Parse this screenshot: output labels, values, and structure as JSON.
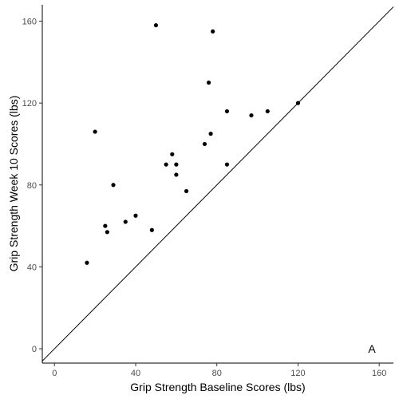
{
  "chart_data": {
    "type": "scatter",
    "xlabel": "Grip Strength Baseline Scores (lbs)",
    "ylabel": "Grip Strength Week 10 Scores (lbs)",
    "annotation": "A",
    "xlim": [
      -6,
      167
    ],
    "ylim": [
      -7,
      168
    ],
    "xticks": [
      0,
      40,
      80,
      120,
      160
    ],
    "yticks": [
      0,
      40,
      80,
      120,
      160
    ],
    "grid": false,
    "reference_line": {
      "type": "identity",
      "slope": 1,
      "intercept": 0
    },
    "points": [
      {
        "x": 16,
        "y": 42
      },
      {
        "x": 20,
        "y": 106
      },
      {
        "x": 25,
        "y": 60
      },
      {
        "x": 26,
        "y": 57
      },
      {
        "x": 29,
        "y": 80
      },
      {
        "x": 35,
        "y": 62
      },
      {
        "x": 40,
        "y": 65
      },
      {
        "x": 48,
        "y": 58
      },
      {
        "x": 50,
        "y": 158
      },
      {
        "x": 55,
        "y": 90
      },
      {
        "x": 58,
        "y": 95
      },
      {
        "x": 60,
        "y": 85
      },
      {
        "x": 60,
        "y": 90
      },
      {
        "x": 65,
        "y": 77
      },
      {
        "x": 74,
        "y": 100
      },
      {
        "x": 76,
        "y": 130
      },
      {
        "x": 77,
        "y": 105
      },
      {
        "x": 78,
        "y": 155
      },
      {
        "x": 85,
        "y": 116
      },
      {
        "x": 85,
        "y": 90
      },
      {
        "x": 97,
        "y": 114
      },
      {
        "x": 105,
        "y": 116
      },
      {
        "x": 120,
        "y": 120
      }
    ]
  }
}
